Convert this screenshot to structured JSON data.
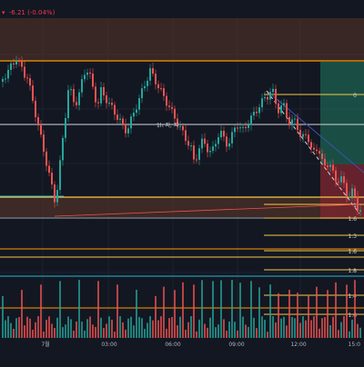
{
  "legend": {
    "prefix": "▾",
    "change_text": "-6.21 (-0.04%)"
  },
  "colors": {
    "background": "#131722",
    "grid": "#1e222d",
    "up": "#26a69a",
    "down": "#ef5350",
    "zone_top": "#5a3528",
    "zone_bottom": "#5a3528",
    "zone_red": "#7a2530",
    "zone_green": "#1d5c4e",
    "yellow": "#f7c948",
    "orange": "#ff9800",
    "white_line": "#d1d4dc",
    "cyan": "#22b8cf",
    "blue_channel": "#3f51b5"
  },
  "annotations": {
    "mid_label": "1h 지, 지"
  },
  "fib_labels": [
    "0",
    "1",
    "1.6",
    "1.3",
    "1.6",
    "1.8",
    "1.4",
    "1.6"
  ],
  "time_axis": [
    "7월",
    "03:00",
    "06:00",
    "09:00",
    "12:00",
    "15:0"
  ],
  "chart_data": {
    "type": "candlestick",
    "x": [
      "7월",
      "03:00",
      "06:00",
      "09:00",
      "12:00",
      "15:0"
    ],
    "price_series_shape": "decline-bounce-decline",
    "volume_present": true,
    "fib_levels": [
      "0",
      "1",
      "1.6",
      "1.3",
      "1.6",
      "1.8",
      "1.4",
      "1.6"
    ]
  }
}
